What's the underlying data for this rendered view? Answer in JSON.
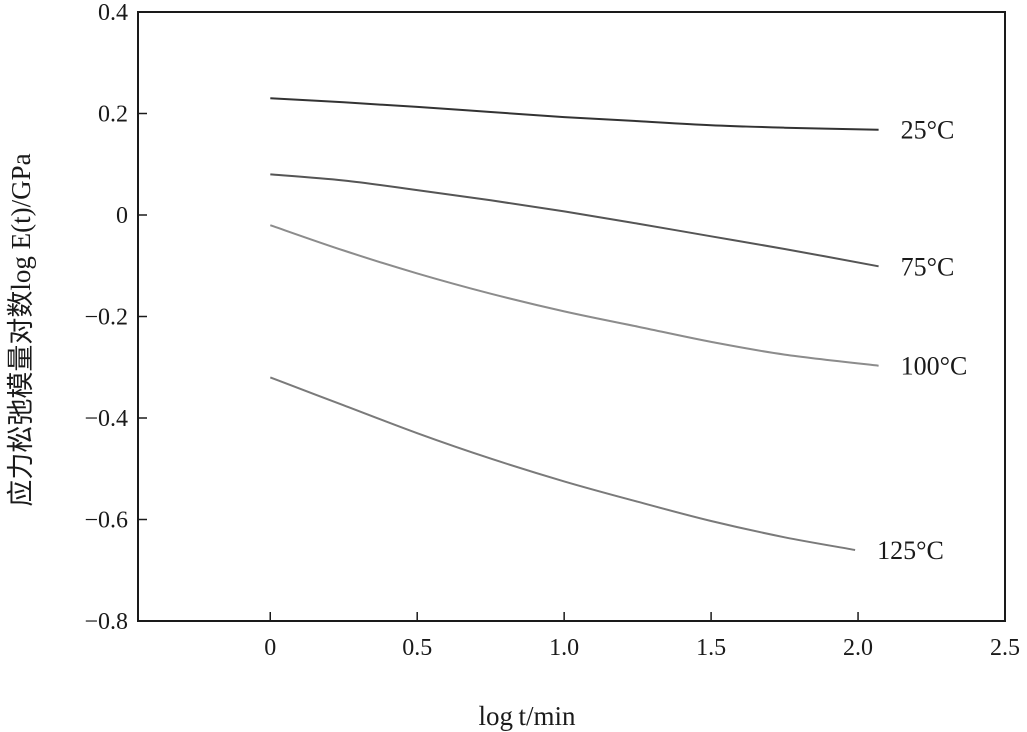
{
  "chart_data": {
    "type": "line",
    "title": "",
    "xlabel": "log t/min",
    "ylabel": "应力松弛模量对数log E(t)/GPa",
    "xlim": [
      -0.45,
      2.5
    ],
    "ylim": [
      -0.8,
      0.4
    ],
    "xticks": [
      0,
      0.5,
      1.0,
      1.5,
      2.0,
      2.5
    ],
    "xtick_labels": [
      "0",
      "0.5",
      "1.0",
      "1.5",
      "2.0",
      "2.5"
    ],
    "yticks": [
      0.4,
      0.2,
      0,
      -0.2,
      -0.4,
      -0.6,
      -0.8
    ],
    "ytick_labels": [
      "0.4",
      "0.2",
      "0",
      "−0.2",
      "−0.4",
      "−0.6",
      "−0.8"
    ],
    "grid": false,
    "legend": "none",
    "series": [
      {
        "name": "25°C",
        "color": "#333333",
        "x": [
          0,
          0.25,
          0.5,
          0.75,
          1.0,
          1.25,
          1.5,
          1.75,
          2.07
        ],
        "y": [
          0.23,
          0.222,
          0.213,
          0.203,
          0.193,
          0.185,
          0.177,
          0.172,
          0.168
        ]
      },
      {
        "name": "75°C",
        "color": "#555555",
        "x": [
          0,
          0.25,
          0.5,
          0.75,
          1.0,
          1.25,
          1.5,
          1.75,
          2.07
        ],
        "y": [
          0.08,
          0.068,
          0.049,
          0.029,
          0.007,
          -0.017,
          -0.042,
          -0.067,
          -0.101
        ]
      },
      {
        "name": "100°C",
        "color": "#8c8c8c",
        "x": [
          0,
          0.25,
          0.5,
          0.75,
          1.0,
          1.25,
          1.5,
          1.75,
          2.07
        ],
        "y": [
          -0.02,
          -0.07,
          -0.115,
          -0.155,
          -0.19,
          -0.22,
          -0.25,
          -0.275,
          -0.297
        ]
      },
      {
        "name": "125°C",
        "color": "#7a7a7a",
        "x": [
          0,
          0.25,
          0.5,
          0.75,
          1.0,
          1.25,
          1.5,
          1.75,
          1.99
        ],
        "y": [
          -0.32,
          -0.375,
          -0.43,
          -0.48,
          -0.525,
          -0.565,
          -0.603,
          -0.635,
          -0.66
        ]
      }
    ]
  }
}
